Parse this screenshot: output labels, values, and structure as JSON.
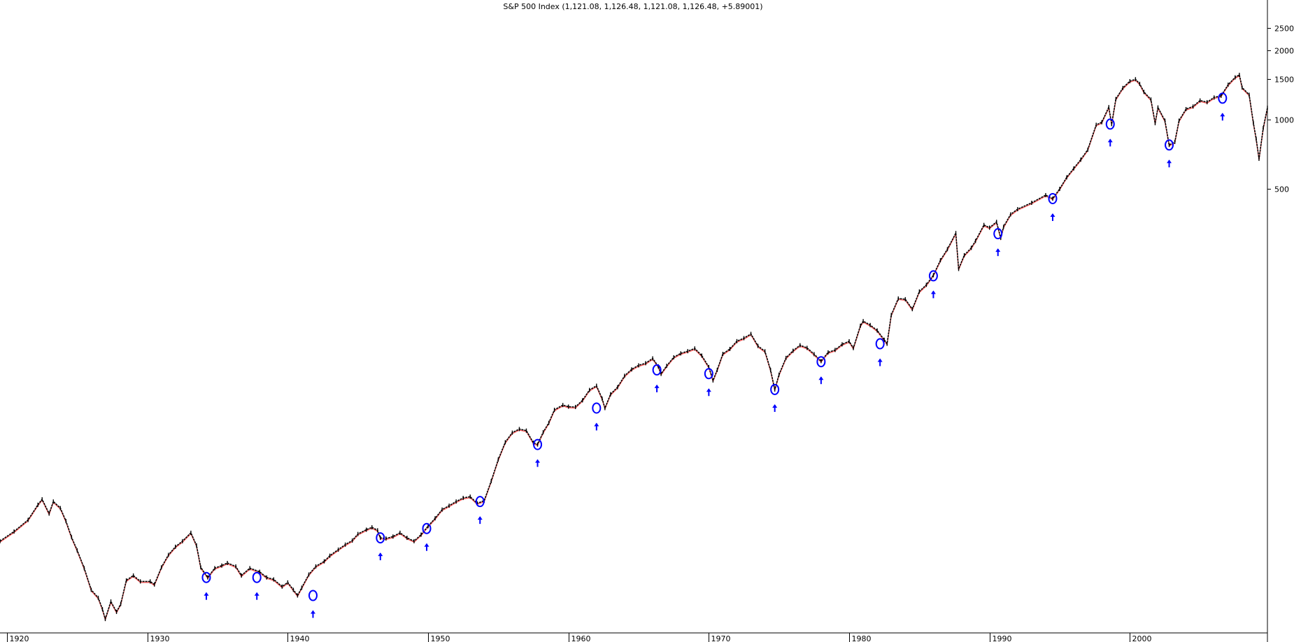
{
  "chart_data": {
    "type": "line",
    "title": "S&P 500 Index (1,121.08, 1,126.48, 1,121.08, 1,126.48, +5.89001)",
    "xlabel": "",
    "ylabel": "",
    "y_scale": "log",
    "xlim": [
      1919.5,
      2009.8
    ],
    "ylim": [
      6,
      3000
    ],
    "x_ticks": [
      {
        "value": 1920,
        "label": "1920"
      },
      {
        "value": 1930,
        "label": "1930"
      },
      {
        "value": 1940,
        "label": "1940"
      },
      {
        "value": 1950,
        "label": "1950"
      },
      {
        "value": 1960,
        "label": "1960"
      },
      {
        "value": 1970,
        "label": "1970"
      },
      {
        "value": 1980,
        "label": "1980"
      },
      {
        "value": 1990,
        "label": "1990"
      },
      {
        "value": 2000,
        "label": "2000"
      }
    ],
    "y_ticks": [
      {
        "value": 500,
        "label": "500"
      },
      {
        "value": 1000,
        "label": "1000"
      },
      {
        "value": 1500,
        "label": "1500"
      },
      {
        "value": 2000,
        "label": "2000"
      },
      {
        "value": 2500,
        "label": "2500"
      }
    ],
    "grid": false,
    "series": [
      {
        "name": "",
        "color": "#000000",
        "accent_color": "#ff0000",
        "points": [
          [
            1919.5,
            14.8
          ],
          [
            1920.5,
            16.3
          ],
          [
            1921.5,
            18.3
          ],
          [
            1922.2,
            21.3
          ],
          [
            1922.5,
            22.5
          ],
          [
            1923.0,
            19.5
          ],
          [
            1923.3,
            22.0
          ],
          [
            1923.8,
            20.6
          ],
          [
            1924.2,
            18.1
          ],
          [
            1924.6,
            15.4
          ],
          [
            1925.0,
            13.5
          ],
          [
            1925.5,
            11.3
          ],
          [
            1926.0,
            9.1
          ],
          [
            1926.5,
            8.4
          ],
          [
            1926.8,
            7.5
          ],
          [
            1927.0,
            6.8
          ],
          [
            1927.4,
            8.1
          ],
          [
            1927.8,
            7.3
          ],
          [
            1928.1,
            7.9
          ],
          [
            1928.5,
            10.0
          ],
          [
            1929.0,
            10.5
          ],
          [
            1929.5,
            9.9
          ],
          [
            1930.2,
            9.9
          ],
          [
            1930.5,
            9.6
          ],
          [
            1931.0,
            11.4
          ],
          [
            1931.5,
            12.9
          ],
          [
            1932.0,
            14.0
          ],
          [
            1932.5,
            14.8
          ],
          [
            1933.1,
            16.1
          ],
          [
            1933.5,
            14.2
          ],
          [
            1933.8,
            11.4
          ],
          [
            1934.3,
            10.3
          ],
          [
            1934.8,
            11.3
          ],
          [
            1935.3,
            11.6
          ],
          [
            1935.7,
            11.9
          ],
          [
            1936.3,
            11.5
          ],
          [
            1936.7,
            10.5
          ],
          [
            1937.3,
            11.3
          ],
          [
            1938.0,
            10.9
          ],
          [
            1938.5,
            10.3
          ],
          [
            1939.0,
            10.1
          ],
          [
            1939.6,
            9.4
          ],
          [
            1940.0,
            9.8
          ],
          [
            1940.4,
            9.1
          ],
          [
            1940.7,
            8.6
          ],
          [
            1941.0,
            9.3
          ],
          [
            1941.5,
            10.6
          ],
          [
            1942.0,
            11.5
          ],
          [
            1942.6,
            12.1
          ],
          [
            1943.0,
            12.8
          ],
          [
            1943.6,
            13.6
          ],
          [
            1944.1,
            14.3
          ],
          [
            1944.6,
            14.9
          ],
          [
            1945.0,
            15.9
          ],
          [
            1945.6,
            16.6
          ],
          [
            1946.0,
            17.0
          ],
          [
            1946.4,
            16.5
          ],
          [
            1946.6,
            15.3
          ],
          [
            1947.0,
            15.2
          ],
          [
            1947.5,
            15.5
          ],
          [
            1948.0,
            16.1
          ],
          [
            1948.5,
            15.3
          ],
          [
            1949.0,
            14.8
          ],
          [
            1949.5,
            15.8
          ],
          [
            1950.0,
            17.2
          ],
          [
            1950.5,
            18.6
          ],
          [
            1951.0,
            20.3
          ],
          [
            1951.5,
            21.1
          ],
          [
            1952.0,
            22.0
          ],
          [
            1952.5,
            22.8
          ],
          [
            1953.0,
            23.1
          ],
          [
            1953.5,
            21.6
          ],
          [
            1954.0,
            22.2
          ],
          [
            1954.5,
            27.0
          ],
          [
            1955.0,
            33.5
          ],
          [
            1955.5,
            39.8
          ],
          [
            1956.0,
            43.8
          ],
          [
            1956.5,
            45.4
          ],
          [
            1957.0,
            44.7
          ],
          [
            1957.5,
            39.6
          ],
          [
            1957.8,
            38.9
          ],
          [
            1958.2,
            44.0
          ],
          [
            1958.6,
            48.3
          ],
          [
            1959.0,
            55.0
          ],
          [
            1959.6,
            57.7
          ],
          [
            1960.0,
            56.8
          ],
          [
            1960.5,
            56.6
          ],
          [
            1961.0,
            60.5
          ],
          [
            1961.5,
            67.1
          ],
          [
            1962.0,
            70.0
          ],
          [
            1962.4,
            61.5
          ],
          [
            1962.6,
            56.0
          ],
          [
            1963.0,
            64.3
          ],
          [
            1963.5,
            69.0
          ],
          [
            1964.0,
            77.3
          ],
          [
            1964.5,
            82.4
          ],
          [
            1965.0,
            85.8
          ],
          [
            1965.5,
            87.7
          ],
          [
            1966.0,
            92.0
          ],
          [
            1966.4,
            85.0
          ],
          [
            1966.6,
            78.8
          ],
          [
            1967.0,
            85.4
          ],
          [
            1967.5,
            93.0
          ],
          [
            1968.0,
            96.7
          ],
          [
            1968.5,
            98.9
          ],
          [
            1969.0,
            101.6
          ],
          [
            1969.5,
            94.6
          ],
          [
            1970.0,
            84.4
          ],
          [
            1970.3,
            73.8
          ],
          [
            1970.6,
            82.0
          ],
          [
            1971.0,
            96.2
          ],
          [
            1971.5,
            101.1
          ],
          [
            1972.0,
            109.3
          ],
          [
            1972.5,
            112.6
          ],
          [
            1973.0,
            117.5
          ],
          [
            1973.5,
            104.2
          ],
          [
            1974.0,
            98.8
          ],
          [
            1974.4,
            82.0
          ],
          [
            1974.7,
            67.4
          ],
          [
            1975.0,
            78.2
          ],
          [
            1975.5,
            92.4
          ],
          [
            1976.0,
            99.3
          ],
          [
            1976.5,
            104.9
          ],
          [
            1977.0,
            102.2
          ],
          [
            1977.5,
            96.0
          ],
          [
            1978.0,
            89.5
          ],
          [
            1978.5,
            97.7
          ],
          [
            1979.0,
            100.1
          ],
          [
            1979.5,
            105.9
          ],
          [
            1980.0,
            109.2
          ],
          [
            1980.3,
            102.0
          ],
          [
            1980.8,
            127.5
          ],
          [
            1981.0,
            133.5
          ],
          [
            1981.5,
            128.4
          ],
          [
            1982.0,
            121.6
          ],
          [
            1982.5,
            110.8
          ],
          [
            1982.7,
            106.5
          ],
          [
            1983.0,
            142.0
          ],
          [
            1983.5,
            167.4
          ],
          [
            1984.0,
            166.2
          ],
          [
            1984.5,
            150.5
          ],
          [
            1985.0,
            179.6
          ],
          [
            1985.5,
            191.9
          ],
          [
            1986.0,
            211.3
          ],
          [
            1986.5,
            245.3
          ],
          [
            1987.0,
            274.1
          ],
          [
            1987.6,
            322.0
          ],
          [
            1987.8,
            225.0
          ],
          [
            1988.2,
            258.0
          ],
          [
            1988.7,
            277.7
          ],
          [
            1989.0,
            297.5
          ],
          [
            1989.6,
            349.2
          ],
          [
            1990.0,
            339.9
          ],
          [
            1990.5,
            360.0
          ],
          [
            1990.8,
            307.0
          ],
          [
            1991.0,
            343.0
          ],
          [
            1991.5,
            387.9
          ],
          [
            1992.0,
            408.8
          ],
          [
            1993.0,
            435.7
          ],
          [
            1994.0,
            470.4
          ],
          [
            1994.5,
            454.4
          ],
          [
            1995.0,
            500.7
          ],
          [
            1995.5,
            562.1
          ],
          [
            1996.0,
            614.4
          ],
          [
            1996.5,
            670.6
          ],
          [
            1997.0,
            740.7
          ],
          [
            1997.6,
            950.0
          ],
          [
            1998.0,
            975.0
          ],
          [
            1998.5,
            1133.8
          ],
          [
            1998.7,
            957.3
          ],
          [
            1999.0,
            1229.2
          ],
          [
            1999.5,
            1372.7
          ],
          [
            2000.0,
            1469.3
          ],
          [
            2000.4,
            1498.6
          ],
          [
            2000.7,
            1430.8
          ],
          [
            2001.0,
            1320.3
          ],
          [
            2001.5,
            1224.0
          ],
          [
            2001.8,
            965.8
          ],
          [
            2002.0,
            1130.2
          ],
          [
            2002.5,
            989.8
          ],
          [
            2002.8,
            776.8
          ],
          [
            2003.2,
            800.7
          ],
          [
            2003.5,
            990.3
          ],
          [
            2004.0,
            1111.9
          ],
          [
            2004.5,
            1140.8
          ],
          [
            2005.0,
            1211.9
          ],
          [
            2005.5,
            1191.3
          ],
          [
            2006.0,
            1248.3
          ],
          [
            2006.5,
            1270.2
          ],
          [
            2007.0,
            1418.3
          ],
          [
            2007.5,
            1526.7
          ],
          [
            2007.8,
            1565.2
          ],
          [
            2008.0,
            1378.6
          ],
          [
            2008.5,
            1282.8
          ],
          [
            2008.8,
            968.8
          ],
          [
            2009.0,
            825.9
          ],
          [
            2009.2,
            676.5
          ],
          [
            2009.5,
            919.3
          ],
          [
            2009.8,
            1126.48
          ]
        ]
      }
    ],
    "annotations": [
      {
        "type": "circle-with-up-arrow",
        "color": "#0000ff",
        "points": [
          [
            1934.2,
            10.3
          ],
          [
            1937.8,
            10.3
          ],
          [
            1941.8,
            8.6
          ],
          [
            1946.6,
            15.3
          ],
          [
            1949.9,
            16.8
          ],
          [
            1953.7,
            22.0
          ],
          [
            1957.8,
            38.9
          ],
          [
            1962.0,
            56.0
          ],
          [
            1966.3,
            82.0
          ],
          [
            1970.0,
            79.0
          ],
          [
            1974.7,
            67.4
          ],
          [
            1978.0,
            89.0
          ],
          [
            1982.2,
            106.5
          ],
          [
            1986.0,
            210.0
          ],
          [
            1990.6,
            320.0
          ],
          [
            1994.5,
            454.4
          ],
          [
            1998.6,
            957.3
          ],
          [
            2002.8,
            776.8
          ],
          [
            2006.6,
            1240.0
          ]
        ]
      }
    ]
  }
}
